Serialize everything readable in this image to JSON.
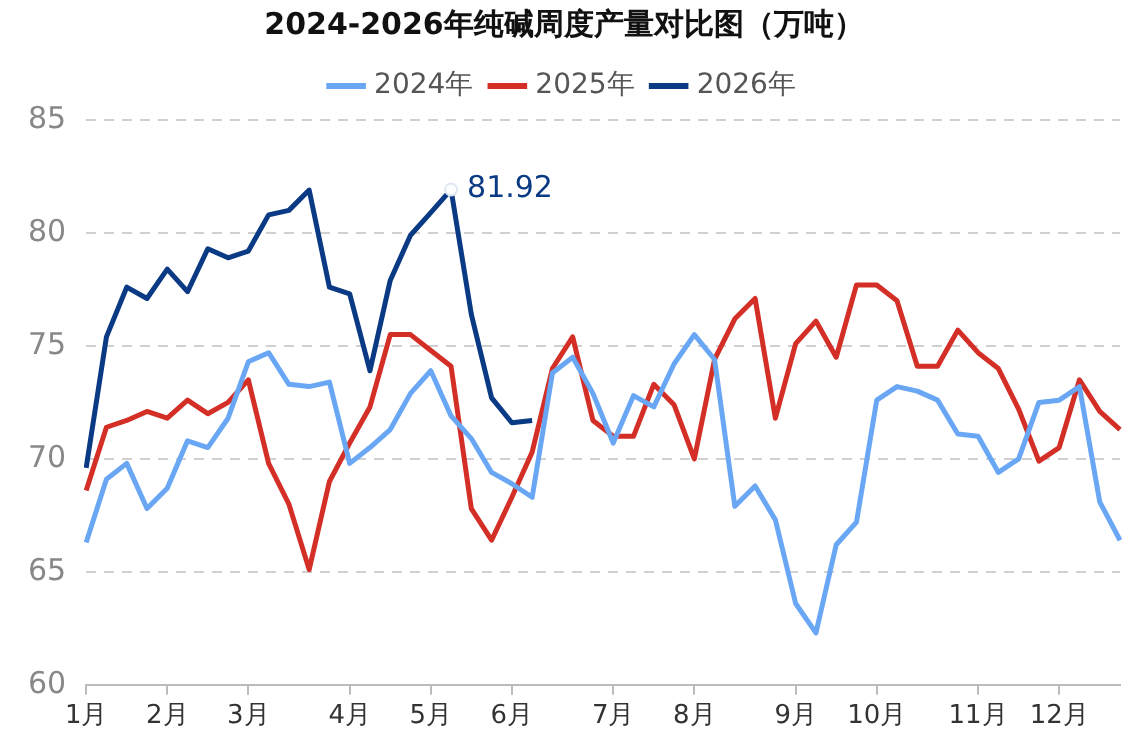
{
  "chart_data": {
    "type": "line",
    "title": "2024-2026年纯碱周度产量对比图（万吨）",
    "categories": [
      "1月",
      null,
      null,
      null,
      "2月",
      null,
      null,
      null,
      "3月",
      null,
      null,
      null,
      null,
      "4月",
      null,
      null,
      null,
      "5月",
      null,
      null,
      null,
      "6月",
      null,
      null,
      null,
      null,
      "7月",
      null,
      null,
      null,
      "8月",
      null,
      null,
      null,
      null,
      "9月",
      null,
      null,
      null,
      "10月",
      null,
      null,
      null,
      null,
      "11月",
      null,
      null,
      null,
      "12月",
      null,
      null,
      null
    ],
    "series": [
      {
        "name": "2024年",
        "color": "#69a7f5",
        "values": [
          66.3,
          69.1,
          69.8,
          67.8,
          68.7,
          70.8,
          70.5,
          71.8,
          74.3,
          74.7,
          73.3,
          73.2,
          73.4,
          69.8,
          70.5,
          71.3,
          72.9,
          73.9,
          71.9,
          70.9,
          69.4,
          68.9,
          68.3,
          73.8,
          74.5,
          72.9,
          70.7,
          72.8,
          72.3,
          74.2,
          75.5,
          74.4,
          67.9,
          68.8,
          67.3,
          63.6,
          62.3,
          66.2,
          67.2,
          72.6,
          73.2,
          73.0,
          72.6,
          71.1,
          71.0,
          69.4,
          70.0,
          72.5,
          72.6,
          73.2,
          68.1,
          66.4
        ]
      },
      {
        "name": "2025年",
        "color": "#d42f26",
        "values": [
          68.6,
          71.4,
          71.7,
          72.1,
          71.8,
          72.6,
          72.0,
          72.5,
          73.5,
          69.8,
          68.0,
          65.1,
          69.0,
          70.7,
          72.3,
          75.5,
          75.5,
          74.8,
          74.1,
          67.8,
          66.4,
          68.3,
          70.3,
          74.0,
          75.4,
          71.7,
          71.0,
          71.0,
          73.3,
          72.4,
          70.0,
          74.4,
          76.2,
          77.1,
          71.8,
          75.1,
          76.1,
          74.5,
          77.7,
          77.7,
          77.0,
          74.1,
          74.1,
          75.7,
          74.7,
          74.0,
          72.2,
          69.9,
          70.5,
          73.5,
          72.1,
          71.3
        ]
      },
      {
        "name": "2026年",
        "color": "#0b3a85",
        "values": [
          69.6,
          75.4,
          77.6,
          77.1,
          78.4,
          77.4,
          79.3,
          78.9,
          79.2,
          80.8,
          81.0,
          81.9,
          77.6,
          77.3,
          73.9,
          77.9,
          79.9,
          80.9,
          81.92,
          76.4,
          72.7,
          71.6,
          71.7,
          null,
          null,
          null,
          null,
          null,
          null,
          null,
          null,
          null,
          null,
          null,
          null,
          null,
          null,
          null,
          null,
          null,
          null,
          null,
          null,
          null,
          null,
          null,
          null,
          null,
          null,
          null,
          null,
          null
        ],
        "value_labels": [
          null,
          null,
          null,
          null,
          null,
          null,
          null,
          null,
          null,
          null,
          null,
          null,
          null,
          null,
          null,
          null,
          null,
          null,
          "81.92",
          null,
          null,
          null,
          null,
          null,
          null,
          null,
          null,
          null,
          null,
          null,
          null,
          null,
          null,
          null,
          null,
          null,
          null,
          null,
          null,
          null,
          null,
          null,
          null,
          null,
          null,
          null,
          null,
          null,
          null,
          null,
          null,
          null
        ]
      }
    ],
    "ylim": [
      60,
      85
    ],
    "yticks": [
      60,
      65,
      70,
      75,
      80,
      85
    ],
    "grid": "y",
    "legend": "top"
  }
}
